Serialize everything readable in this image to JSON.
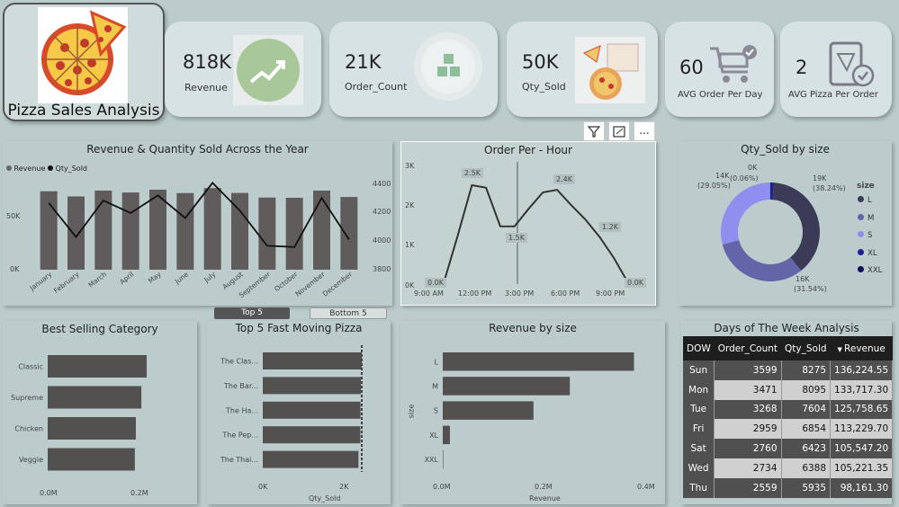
{
  "title": "Pizza Sales Analysis",
  "kpis": [
    {
      "value": "818K",
      "label": "Revenue",
      "icon": "revenue-growth-icon"
    },
    {
      "value": "21K",
      "label": "Order_Count",
      "icon": "order-blocks-icon"
    },
    {
      "value": "50K",
      "label": "Qty_Sold",
      "icon": "pizza-box-icon"
    },
    {
      "value": "60",
      "label": "AVG Order Per Day",
      "icon": "cart-icon"
    },
    {
      "value": "2",
      "label": "AVG Pizza Per Order",
      "icon": "tablet-pizza-icon"
    }
  ],
  "toolbar": {
    "filter": "filter-icon",
    "focus": "focus-mode-icon",
    "more": "..."
  },
  "toggle": {
    "top": "Top 5",
    "bottom": "Bottom 5"
  },
  "revenue_qty": {
    "title": "Revenue & Quantity Sold Across the Year",
    "legend": [
      "Revenue",
      "Qty_Sold"
    ],
    "y_left_ticks": [
      "50K",
      "0K"
    ],
    "y_right_ticks": [
      "4400",
      "4200",
      "4000",
      "3800"
    ]
  },
  "order_hour": {
    "title": "Order Per - Hour",
    "y_ticks": [
      "3K",
      "2K",
      "1K",
      "0K"
    ],
    "x_ticks": [
      "9:00 AM",
      "12:00 PM",
      "3:00 PM",
      "6:00 PM",
      "9:00 PM"
    ],
    "labels": [
      "0.0K",
      "2.5K",
      "1.5K",
      "2.4K",
      "1.2K",
      "0.0K"
    ]
  },
  "qty_size": {
    "title": "Qty_Sold by size",
    "legend_title": "size",
    "labels": [
      "0K",
      "(0.06%)",
      "14K",
      "(29.05%)",
      "19K",
      "(38.24%)",
      "16K",
      "(31.54%)"
    ]
  },
  "best_category": {
    "title": "Best Selling Category",
    "x_ticks": [
      "0.0M",
      "0.2M"
    ]
  },
  "top5": {
    "title": "Top 5 Fast Moving Pizza",
    "x_ticks": [
      "0K",
      "2K"
    ],
    "xlabel": "Qty_Sold"
  },
  "rev_size": {
    "title": "Revenue by size",
    "x_ticks": [
      "0.0M",
      "0.2M",
      "0.4M"
    ],
    "xlabel": "Revenue",
    "ylabel": "size"
  },
  "dow": {
    "title": "Days of The Week Analysis",
    "headers": [
      "DOW",
      "Order_Count",
      "Qty_Sold",
      "Revenue"
    ],
    "rows": [
      [
        "Sun",
        "3599",
        "8275",
        "136,224.55"
      ],
      [
        "Mon",
        "3471",
        "8095",
        "133,717.30"
      ],
      [
        "Tue",
        "3268",
        "7604",
        "125,758.65"
      ],
      [
        "Fri",
        "2959",
        "6854",
        "113,229.70"
      ],
      [
        "Sat",
        "2760",
        "6423",
        "105,547.20"
      ],
      [
        "Wed",
        "2734",
        "6388",
        "105,221.35"
      ],
      [
        "Thu",
        "2559",
        "5935",
        "98,161.30"
      ]
    ]
  },
  "chart_data": [
    {
      "type": "bar",
      "title": "Revenue & Quantity Sold Across the Year",
      "categories": [
        "January",
        "February",
        "March",
        "April",
        "May",
        "June",
        "July",
        "August",
        "September",
        "October",
        "November",
        "December"
      ],
      "series": [
        {
          "name": "Revenue",
          "values": [
            69800,
            65200,
            70400,
            68700,
            71200,
            68200,
            72600,
            68300,
            64200,
            64000,
            70400,
            64700
          ]
        },
        {
          "name": "Qty_Sold",
          "values": [
            4230,
            3960,
            4250,
            4150,
            4290,
            4110,
            4390,
            4170,
            3890,
            3880,
            4270,
            3940
          ]
        }
      ],
      "ylim_left": [
        0,
        80000
      ],
      "ylim_right": [
        3700,
        4450
      ],
      "legend": "top-left"
    },
    {
      "type": "line",
      "title": "Order Per - Hour",
      "x": [
        9,
        10,
        11,
        12,
        13,
        14,
        15,
        16,
        17,
        18,
        19,
        20,
        21,
        22,
        23
      ],
      "values": [
        1,
        8,
        1231,
        2520,
        2455,
        1472,
        1468,
        1920,
        2336,
        2399,
        2009,
        1642,
        1198,
        663,
        28
      ],
      "ylim": [
        0,
        3000
      ]
    },
    {
      "type": "pie",
      "title": "Qty_Sold by size",
      "categories": [
        "L",
        "M",
        "S",
        "XL",
        "XXL"
      ],
      "values": [
        18956,
        15635,
        14403,
        544,
        28
      ],
      "percent": [
        38.24,
        31.54,
        29.05,
        1.1,
        0.06
      ],
      "colors": [
        "#3b3b58",
        "#6464a8",
        "#8f8ff0",
        "#1d1d8f",
        "#0c0c5a"
      ]
    },
    {
      "type": "bar",
      "title": "Best Selling Category",
      "categories": [
        "Classic",
        "Supreme",
        "Chicken",
        "Veggie"
      ],
      "values": [
        220053,
        208197,
        195920,
        193690
      ],
      "xlim": [
        0,
        0.25
      ]
    },
    {
      "type": "bar",
      "title": "Top 5 Fast Moving Pizza",
      "categories": [
        "The Clas...",
        "The Bar...",
        "The Ha...",
        "The Pep...",
        "The Thai..."
      ],
      "values": [
        2453,
        2432,
        2422,
        2418,
        2371
      ],
      "xlabel": "Qty_Sold",
      "xlim": [
        0,
        2.5
      ]
    },
    {
      "type": "bar",
      "title": "Revenue by size",
      "categories": [
        "L",
        "M",
        "S",
        "XL",
        "XXL"
      ],
      "values": [
        375318.7,
        249382.25,
        178076.5,
        14076,
        1006.6
      ],
      "xlabel": "Revenue",
      "ylabel": "size",
      "xlim": [
        0,
        0.4
      ]
    }
  ]
}
